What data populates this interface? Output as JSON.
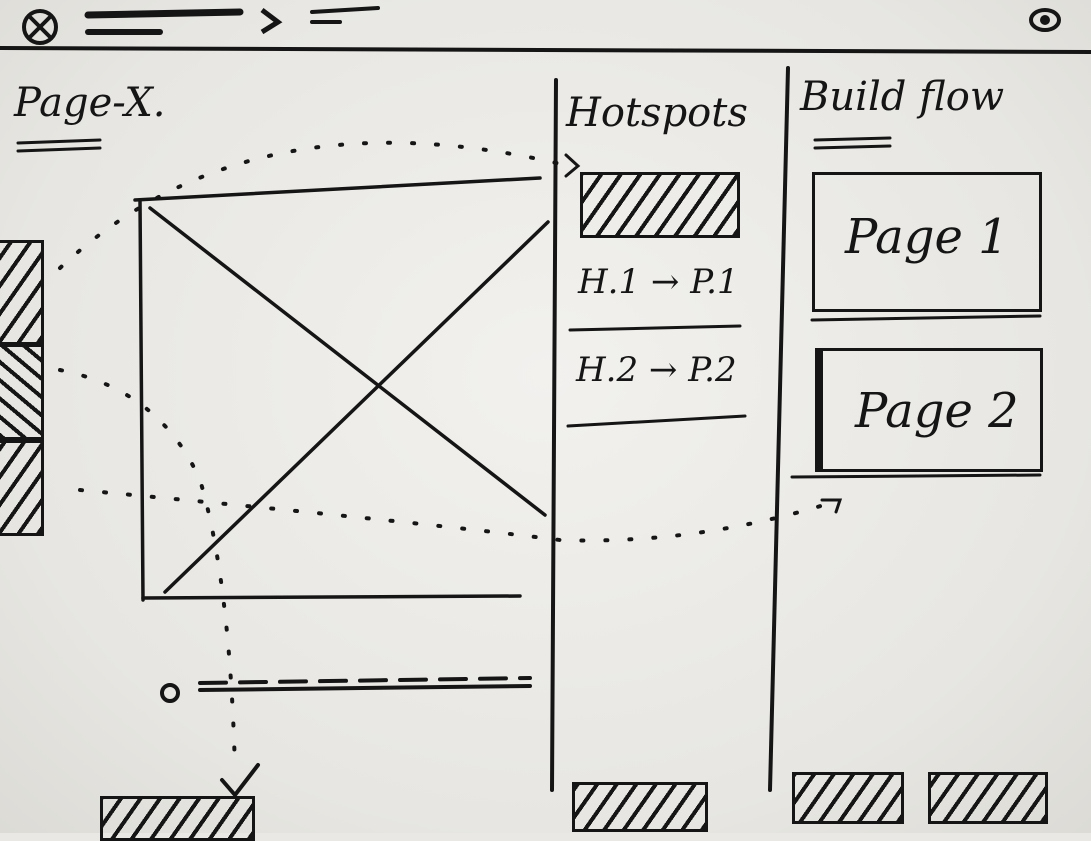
{
  "page": {
    "title": "Page-X."
  },
  "hotspots": {
    "title": "Hotspots",
    "items": [
      {
        "label": "H.1 → P.1"
      },
      {
        "label": "H.2 → P.2"
      }
    ]
  },
  "build_flow": {
    "title": "Build flow",
    "pages": [
      {
        "label": "Page 1"
      },
      {
        "label": "Page 2"
      }
    ]
  },
  "icons": {
    "close": "close-icon",
    "preview": "eye-icon",
    "breadcrumb_separator": "chevron-right-icon"
  }
}
